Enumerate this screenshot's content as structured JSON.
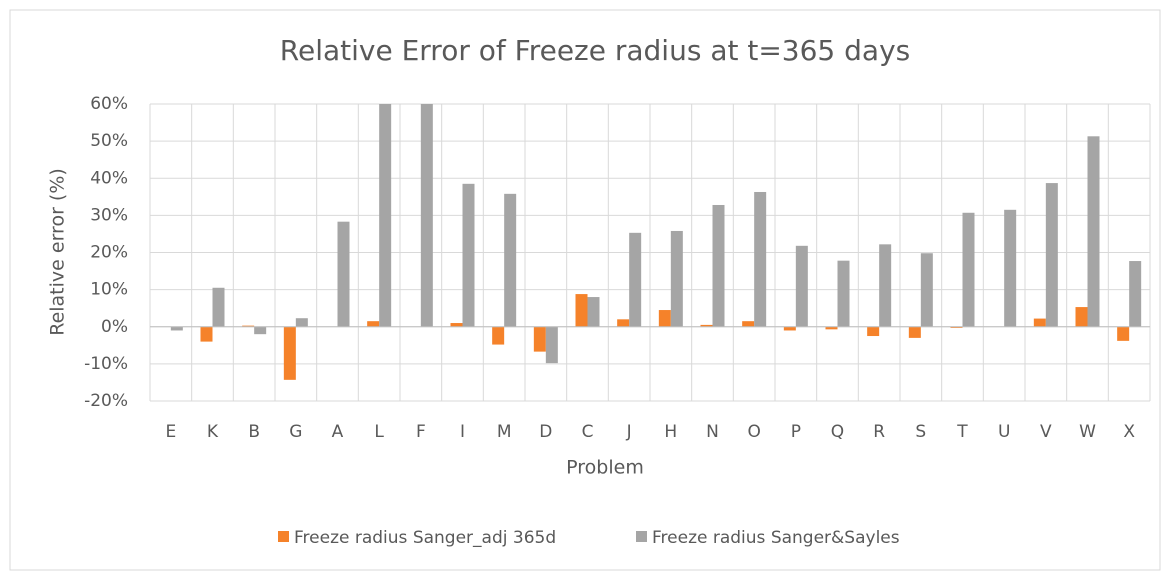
{
  "chart_data": {
    "type": "bar",
    "title": "Relative Error of Freeze radius at t=365 days",
    "x_label": "Problem",
    "y_label": "Relative error (%)",
    "categories": [
      "E",
      "K",
      "B",
      "G",
      "A",
      "L",
      "F",
      "I",
      "M",
      "D",
      "C",
      "J",
      "H",
      "N",
      "O",
      "P",
      "Q",
      "R",
      "S",
      "T",
      "U",
      "V",
      "W",
      "X"
    ],
    "series": [
      {
        "name": "Freeze radius Sanger_adj 365d",
        "color": "#f5822a",
        "values": [
          0,
          -4,
          0.3,
          -14.3,
          0,
          1.5,
          0,
          1,
          -4.8,
          -6.7,
          8.8,
          2,
          4.5,
          0.5,
          1.5,
          -1,
          -0.7,
          -2.5,
          -3,
          -0.3,
          0,
          2.2,
          5.3,
          -3.8
        ]
      },
      {
        "name": "Freeze radius Sanger&Sayles",
        "color": "#a5a5a5",
        "values": [
          -1,
          10.5,
          -2,
          2.3,
          28.3,
          60,
          60,
          38.5,
          35.8,
          -9.8,
          8,
          25.3,
          25.8,
          32.8,
          36.3,
          21.8,
          17.8,
          22.2,
          19.8,
          30.7,
          31.5,
          38.7,
          51.3,
          17.7
        ]
      }
    ],
    "ylim": [
      -20,
      60
    ],
    "yticks": [
      {
        "value": -20,
        "label": "-20%"
      },
      {
        "value": -10,
        "label": "-10%"
      },
      {
        "value": 0,
        "label": "0%"
      },
      {
        "value": 10,
        "label": "10%"
      },
      {
        "value": 20,
        "label": "20%"
      },
      {
        "value": 30,
        "label": "30%"
      },
      {
        "value": 40,
        "label": "40%"
      },
      {
        "value": 50,
        "label": "50%"
      },
      {
        "value": 60,
        "label": "60%"
      }
    ],
    "grid": true,
    "legend": "bottom"
  }
}
